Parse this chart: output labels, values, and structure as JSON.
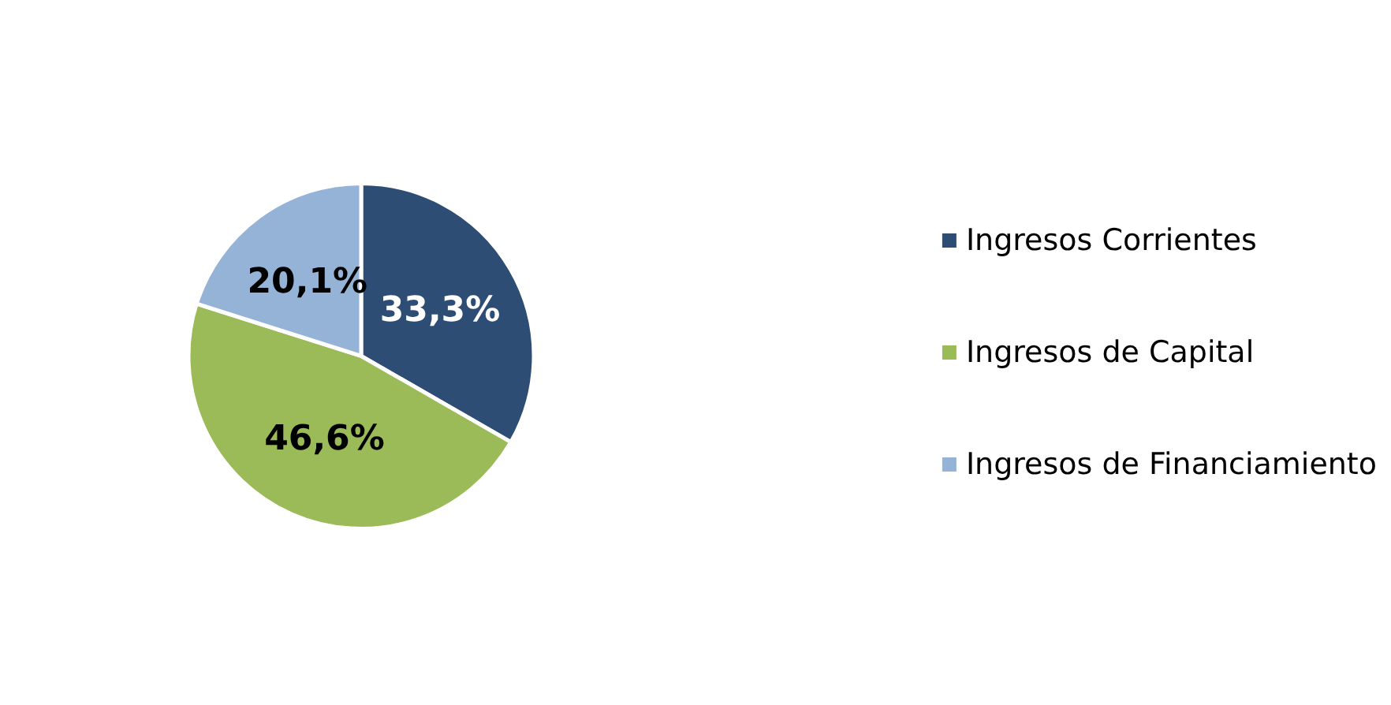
{
  "chart_data": {
    "type": "pie",
    "categories": [
      "Ingresos Corrientes",
      "Ingresos de Capital",
      "Ingresos de Financiamiento"
    ],
    "values": [
      33.3,
      46.6,
      20.1
    ],
    "colors": [
      "#2e4d75",
      "#9bbb59",
      "#95b3d7"
    ],
    "value_labels": [
      "33,3%",
      "46,6%",
      "20,1%"
    ],
    "legend": "right"
  }
}
